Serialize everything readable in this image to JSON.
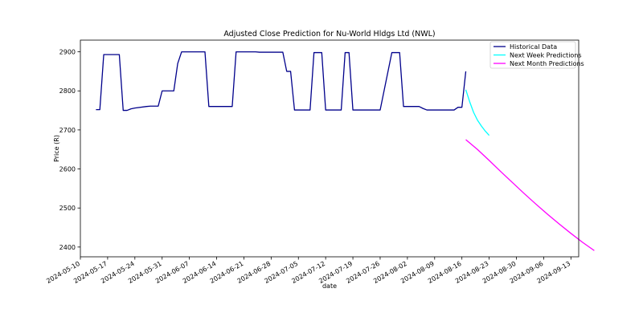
{
  "chart_data": {
    "type": "line",
    "title": "Adjusted Close Prediction for Nu-World Hldgs Ltd (NWL)",
    "xlabel": "date",
    "ylabel": "Price (R)",
    "x_type": "date",
    "xlim": [
      "2024-05-10",
      "2024-09-15"
    ],
    "ylim": [
      2375,
      2930
    ],
    "x_ticks": [
      "2024-05-10",
      "2024-05-17",
      "2024-05-24",
      "2024-05-31",
      "2024-06-07",
      "2024-06-14",
      "2024-06-21",
      "2024-06-28",
      "2024-07-05",
      "2024-07-12",
      "2024-07-19",
      "2024-07-26",
      "2024-08-02",
      "2024-08-09",
      "2024-08-16",
      "2024-08-23",
      "2024-08-30",
      "2024-09-06",
      "2024-09-13"
    ],
    "y_ticks": [
      2400,
      2500,
      2600,
      2700,
      2800,
      2900
    ],
    "grid": false,
    "legend_position": "top-right",
    "series": [
      {
        "name": "Historical Data",
        "color": "#00008b",
        "points": [
          [
            "2024-05-14",
            2752
          ],
          [
            "2024-05-15",
            2752
          ],
          [
            "2024-05-16",
            2893
          ],
          [
            "2024-05-17",
            2893
          ],
          [
            "2024-05-20",
            2893
          ],
          [
            "2024-05-21",
            2750
          ],
          [
            "2024-05-22",
            2750
          ],
          [
            "2024-05-23",
            2754
          ],
          [
            "2024-05-24",
            2756
          ],
          [
            "2024-05-27",
            2760
          ],
          [
            "2024-05-28",
            2761
          ],
          [
            "2024-05-29",
            2761
          ],
          [
            "2024-05-30",
            2761
          ],
          [
            "2024-05-31",
            2800
          ],
          [
            "2024-06-03",
            2800
          ],
          [
            "2024-06-04",
            2870
          ],
          [
            "2024-06-05",
            2900
          ],
          [
            "2024-06-06",
            2900
          ],
          [
            "2024-06-07",
            2900
          ],
          [
            "2024-06-10",
            2900
          ],
          [
            "2024-06-11",
            2900
          ],
          [
            "2024-06-12",
            2760
          ],
          [
            "2024-06-13",
            2760
          ],
          [
            "2024-06-14",
            2760
          ],
          [
            "2024-06-17",
            2760
          ],
          [
            "2024-06-18",
            2760
          ],
          [
            "2024-06-19",
            2900
          ],
          [
            "2024-06-20",
            2900
          ],
          [
            "2024-06-21",
            2900
          ],
          [
            "2024-06-24",
            2900
          ],
          [
            "2024-06-25",
            2899
          ],
          [
            "2024-06-26",
            2899
          ],
          [
            "2024-06-27",
            2899
          ],
          [
            "2024-06-28",
            2899
          ],
          [
            "2024-07-01",
            2899
          ],
          [
            "2024-07-02",
            2850
          ],
          [
            "2024-07-03",
            2850
          ],
          [
            "2024-07-04",
            2751
          ],
          [
            "2024-07-05",
            2751
          ],
          [
            "2024-07-08",
            2751
          ],
          [
            "2024-07-09",
            2898
          ],
          [
            "2024-07-10",
            2898
          ],
          [
            "2024-07-11",
            2898
          ],
          [
            "2024-07-12",
            2751
          ],
          [
            "2024-07-15",
            2751
          ],
          [
            "2024-07-16",
            2751
          ],
          [
            "2024-07-17",
            2898
          ],
          [
            "2024-07-18",
            2898
          ],
          [
            "2024-07-19",
            2751
          ],
          [
            "2024-07-22",
            2751
          ],
          [
            "2024-07-23",
            2751
          ],
          [
            "2024-07-24",
            2751
          ],
          [
            "2024-07-25",
            2751
          ],
          [
            "2024-07-26",
            2751
          ],
          [
            "2024-07-29",
            2898
          ],
          [
            "2024-07-30",
            2898
          ],
          [
            "2024-07-31",
            2898
          ],
          [
            "2024-08-01",
            2760
          ],
          [
            "2024-08-02",
            2760
          ],
          [
            "2024-08-05",
            2760
          ],
          [
            "2024-08-06",
            2755
          ],
          [
            "2024-08-07",
            2751
          ],
          [
            "2024-08-08",
            2751
          ],
          [
            "2024-08-12",
            2751
          ],
          [
            "2024-08-13",
            2751
          ],
          [
            "2024-08-14",
            2751
          ],
          [
            "2024-08-15",
            2758
          ],
          [
            "2024-08-16",
            2758
          ],
          [
            "2024-08-17",
            2850
          ]
        ]
      },
      {
        "name": "Next Week Predictions",
        "color": "#00ffff",
        "points": [
          [
            "2024-08-17",
            2803
          ],
          [
            "2024-08-18",
            2772
          ],
          [
            "2024-08-19",
            2745
          ],
          [
            "2024-08-20",
            2725
          ],
          [
            "2024-08-21",
            2710
          ],
          [
            "2024-08-22",
            2697
          ],
          [
            "2024-08-23",
            2686
          ]
        ]
      },
      {
        "name": "Next Month Predictions",
        "color": "#ff00ff",
        "points": [
          [
            "2024-08-17",
            2675
          ],
          [
            "2024-08-20",
            2650
          ],
          [
            "2024-08-23",
            2622
          ],
          [
            "2024-08-26",
            2593
          ],
          [
            "2024-08-29",
            2565
          ],
          [
            "2024-09-01",
            2537
          ],
          [
            "2024-09-04",
            2510
          ],
          [
            "2024-09-07",
            2484
          ],
          [
            "2024-09-10",
            2459
          ],
          [
            "2024-09-13",
            2435
          ],
          [
            "2024-09-16",
            2412
          ],
          [
            "2024-09-19",
            2391
          ]
        ]
      }
    ]
  }
}
